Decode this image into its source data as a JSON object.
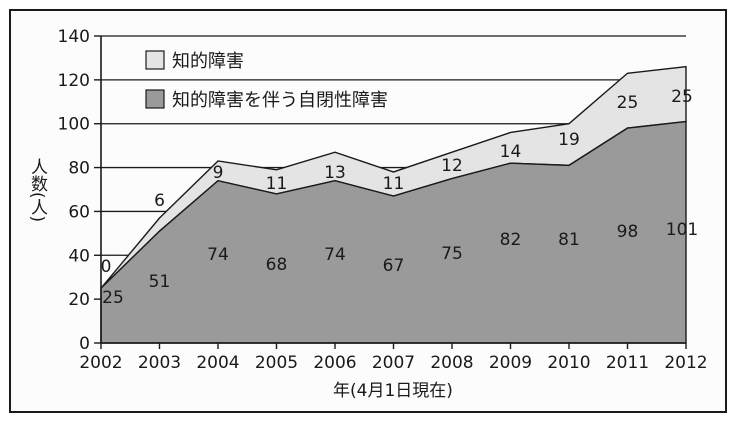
{
  "chart_data": {
    "type": "area",
    "stacked": true,
    "x": [
      "2002",
      "2003",
      "2004",
      "2005",
      "2006",
      "2007",
      "2008",
      "2009",
      "2010",
      "2011",
      "2012"
    ],
    "series": [
      {
        "name": "知的障害を伴う自閉性障害",
        "values": [
          25,
          51,
          74,
          68,
          74,
          67,
          75,
          82,
          81,
          98,
          101
        ],
        "color": "#9a9a9a"
      },
      {
        "name": "知的障害",
        "values": [
          0,
          6,
          9,
          11,
          13,
          11,
          12,
          14,
          19,
          25,
          25
        ],
        "color": "#e4e4e4"
      }
    ],
    "ylim": [
      0,
      140
    ],
    "yticks": [
      "0",
      "20",
      "40",
      "60",
      "80",
      "100",
      "120",
      "140"
    ],
    "ylabel": "人数(人)",
    "xlabel": "年(4月1日現在)",
    "grid": true,
    "legend_position": "top-left"
  }
}
